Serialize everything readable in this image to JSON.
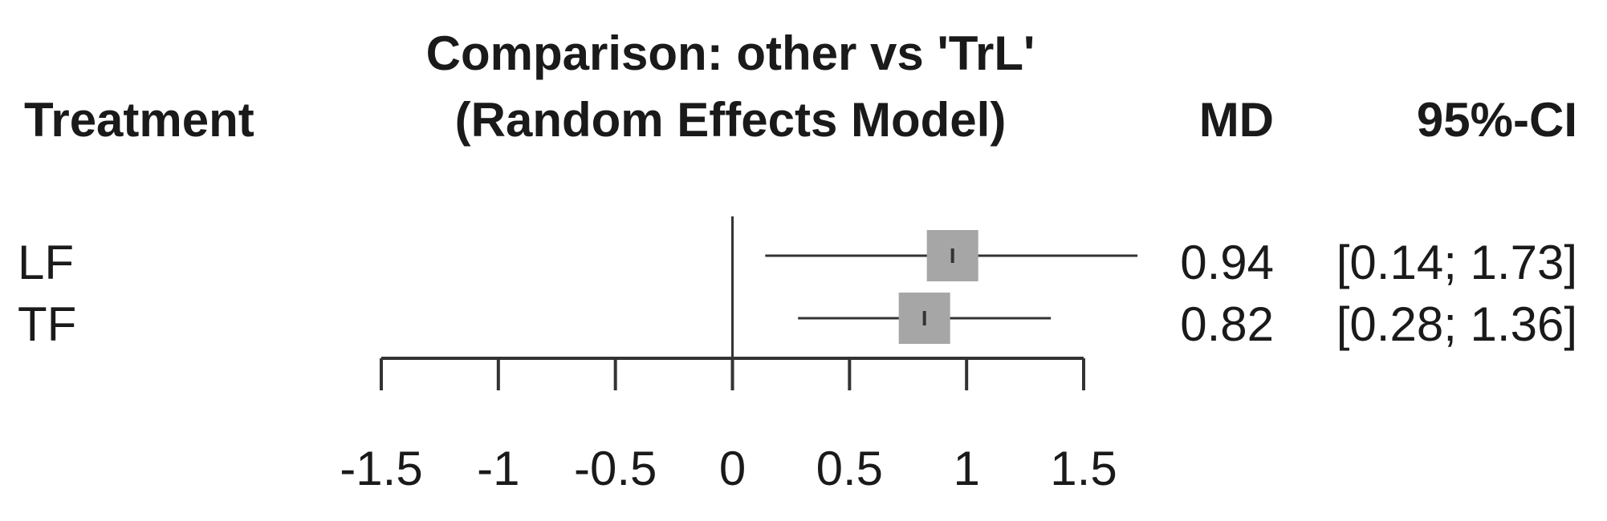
{
  "header": {
    "treatment": "Treatment",
    "title_line1": "Comparison: other vs 'TrL'",
    "title_line2": "(Random Effects Model)",
    "md": "MD",
    "ci": "95%-CI"
  },
  "rows": [
    {
      "treatment": "LF",
      "md_text": "0.94",
      "ci_text": "[0.14; 1.73]"
    },
    {
      "treatment": "TF",
      "md_text": "0.82",
      "ci_text": "[0.28; 1.36]"
    }
  ],
  "colors": {
    "box": "#a6a6a6",
    "line": "#333333",
    "text": "#1a1a1a"
  },
  "chart_data": {
    "type": "forest",
    "categories": [
      "LF",
      "TF"
    ],
    "series": [
      {
        "values": [
          0.94,
          0.82
        ],
        "lower": [
          0.14,
          0.28
        ],
        "upper": [
          1.73,
          1.36
        ]
      }
    ],
    "xlim": [
      -1.5,
      1.5
    ],
    "x_ticks": [
      -1.5,
      -1,
      -0.5,
      0,
      0.5,
      1,
      1.5
    ],
    "x_tick_labels": [
      "-1.5",
      "-1",
      "-0.5",
      "0",
      "0.5",
      "1",
      "1.5"
    ],
    "reference_line": 0,
    "title": "Comparison: other vs 'TrL' (Random Effects Model)",
    "xlabel": "",
    "ylabel": "",
    "grid": false
  }
}
